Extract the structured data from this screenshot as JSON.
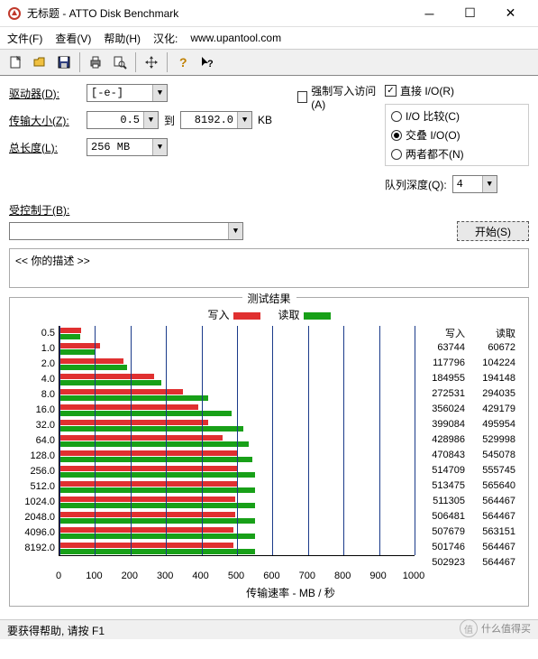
{
  "window": {
    "title": "无标题 - ATTO Disk Benchmark",
    "icon_color": "#c0392b"
  },
  "menu": {
    "file": "文件(F)",
    "view": "查看(V)",
    "help": "帮助(H)",
    "localization_label": "汉化:",
    "localization_url": "www.upantool.com"
  },
  "toolbar_icons": [
    "new",
    "open",
    "save",
    "print",
    "preview",
    "move",
    "help",
    "whatsthis"
  ],
  "controls": {
    "drive_label": "驱动器(D):",
    "drive_value": "[-e-]",
    "transfer_label": "传输大小(Z):",
    "transfer_from": "0.5",
    "transfer_to_label": "到",
    "transfer_to": "8192.0",
    "transfer_unit": "KB",
    "length_label": "总长度(L):",
    "length_value": "256 MB",
    "force_write_label": "强制写入访问(A)",
    "force_write_checked": false,
    "direct_io_label": "直接 I/O(R)",
    "direct_io_checked": true,
    "io_compare_label": "I/O 比较(C)",
    "overlapped_io_label": "交叠 I/O(O)",
    "neither_label": "两者都不(N)",
    "io_selected": "overlapped",
    "queue_depth_label": "队列深度(Q):",
    "queue_depth_value": "4",
    "controlled_label": "受控制于(B):",
    "controlled_value": "",
    "start_label": "开始(S)"
  },
  "description": "<<   你的描述    >>",
  "results": {
    "title": "测试结果",
    "write_label": "写入",
    "read_label": "读取",
    "write_color": "#e03030",
    "read_color": "#18a018",
    "grid_color": "#1a3a8a",
    "xmax": 1000,
    "xtick_step": 100,
    "xticks": [
      0,
      100,
      200,
      300,
      400,
      500,
      600,
      700,
      800,
      900,
      1000
    ],
    "xaxis_title": "传输速率 - MB / 秒",
    "sizes": [
      "0.5",
      "1.0",
      "2.0",
      "4.0",
      "8.0",
      "16.0",
      "32.0",
      "64.0",
      "128.0",
      "256.0",
      "512.0",
      "1024.0",
      "2048.0",
      "4096.0",
      "8192.0"
    ],
    "write_values": [
      63744,
      117796,
      184955,
      272531,
      356024,
      399084,
      428986,
      470843,
      514709,
      513475,
      511305,
      506481,
      507679,
      501746,
      502923
    ],
    "read_values": [
      60672,
      104224,
      194148,
      294035,
      429179,
      495954,
      529998,
      545078,
      555745,
      565640,
      564467,
      564467,
      563151,
      564467,
      564467
    ],
    "write_bar_kb": [
      62,
      115,
      181,
      266,
      348,
      390,
      419,
      460,
      503,
      501,
      499,
      495,
      496,
      490,
      491
    ],
    "read_bar_kb": [
      59,
      102,
      190,
      287,
      419,
      484,
      518,
      532,
      543,
      552,
      551,
      551,
      550,
      551,
      551
    ]
  },
  "statusbar": "要获得帮助, 请按 F1",
  "watermark": {
    "icon": "值",
    "text": "什么值得买"
  }
}
